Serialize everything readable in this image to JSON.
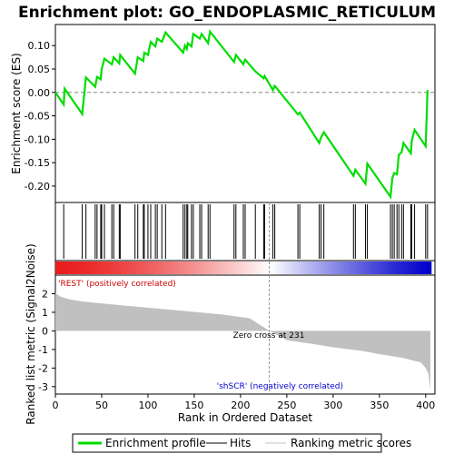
{
  "chart_data": {
    "type": "line",
    "title": "Enrichment plot: GO_ENDOPLASMIC_RETICULUM",
    "top_panel": {
      "ylabel": "Enrichment score (ES)",
      "ylim": [
        -0.235,
        0.145
      ],
      "y_ticks": [
        0.1,
        0.05,
        0.0,
        -0.05,
        -0.1,
        -0.15,
        -0.2
      ],
      "y_tick_labels": [
        "0.10",
        "0.05",
        "0.00",
        "-0.05",
        "-0.10",
        "-0.15",
        "-0.20"
      ],
      "series": [
        {
          "name": "Enrichment profile",
          "color": "#00dd00",
          "points": [
            [
              0,
              0.0
            ],
            [
              9,
              -0.026
            ],
            [
              10,
              0.008
            ],
            [
              29,
              -0.046
            ],
            [
              33,
              0.032
            ],
            [
              43,
              0.012
            ],
            [
              45,
              0.033
            ],
            [
              49,
              0.028
            ],
            [
              50,
              0.05
            ],
            [
              53,
              0.072
            ],
            [
              61,
              0.06
            ],
            [
              63,
              0.075
            ],
            [
              69,
              0.062
            ],
            [
              70,
              0.08
            ],
            [
              86,
              0.04
            ],
            [
              89,
              0.075
            ],
            [
              95,
              0.067
            ],
            [
              96,
              0.085
            ],
            [
              100,
              0.08
            ],
            [
              103,
              0.108
            ],
            [
              108,
              0.098
            ],
            [
              110,
              0.115
            ],
            [
              115,
              0.108
            ],
            [
              119,
              0.128
            ],
            [
              138,
              0.085
            ],
            [
              140,
              0.1
            ],
            [
              142,
              0.093
            ],
            [
              143,
              0.105
            ],
            [
              147,
              0.098
            ],
            [
              149,
              0.125
            ],
            [
              156,
              0.115
            ],
            [
              158,
              0.125
            ],
            [
              165,
              0.105
            ],
            [
              167,
              0.13
            ],
            [
              193,
              0.065
            ],
            [
              195,
              0.08
            ],
            [
              203,
              0.06
            ],
            [
              205,
              0.07
            ],
            [
              216,
              0.045
            ],
            [
              225,
              0.03
            ],
            [
              226,
              0.035
            ],
            [
              235,
              0.005
            ],
            [
              237,
              0.014
            ],
            [
              262,
              -0.047
            ],
            [
              264,
              -0.043
            ],
            [
              285,
              -0.108
            ],
            [
              287,
              -0.096
            ],
            [
              290,
              -0.085
            ],
            [
              322,
              -0.178
            ],
            [
              324,
              -0.165
            ],
            [
              335,
              -0.195
            ],
            [
              337,
              -0.152
            ],
            [
              362,
              -0.223
            ],
            [
              364,
              -0.183
            ],
            [
              366,
              -0.172
            ],
            [
              369,
              -0.175
            ],
            [
              371,
              -0.133
            ],
            [
              374,
              -0.128
            ],
            [
              376,
              -0.108
            ],
            [
              384,
              -0.13
            ],
            [
              385,
              -0.103
            ],
            [
              388,
              -0.08
            ],
            [
              400,
              -0.115
            ],
            [
              402,
              0.005
            ]
          ]
        }
      ]
    },
    "hits_panel": {
      "hit_ranks": [
        9,
        29,
        33,
        43,
        45,
        49,
        50,
        53,
        61,
        63,
        69,
        70,
        86,
        89,
        95,
        96,
        100,
        103,
        108,
        110,
        115,
        119,
        138,
        140,
        142,
        143,
        147,
        149,
        156,
        158,
        165,
        167,
        193,
        195,
        203,
        205,
        216,
        225,
        226,
        235,
        237,
        262,
        264,
        285,
        287,
        290,
        322,
        324,
        335,
        337,
        362,
        364,
        366,
        369,
        371,
        374,
        376,
        384,
        385,
        388,
        400,
        402
      ]
    },
    "bottom_panel": {
      "ylabel": "Ranked list metric (Signal2Noise)",
      "ylim": [
        -3.4,
        3.0
      ],
      "y_ticks": [
        2,
        1,
        0,
        -1,
        -2,
        -3
      ],
      "y_tick_labels": [
        "2",
        "1",
        "0",
        "-1",
        "-2",
        "-3"
      ],
      "metric_curve": [
        [
          0,
          2.05
        ],
        [
          5,
          1.85
        ],
        [
          15,
          1.7
        ],
        [
          30,
          1.58
        ],
        [
          60,
          1.43
        ],
        [
          100,
          1.25
        ],
        [
          140,
          1.07
        ],
        [
          180,
          0.88
        ],
        [
          210,
          0.68
        ],
        [
          231,
          0.0
        ],
        [
          250,
          -0.5
        ],
        [
          280,
          -0.72
        ],
        [
          300,
          -0.88
        ],
        [
          330,
          -1.07
        ],
        [
          350,
          -1.25
        ],
        [
          375,
          -1.45
        ],
        [
          395,
          -1.7
        ],
        [
          400,
          -2.0
        ],
        [
          403,
          -2.3
        ],
        [
          405,
          -3.2
        ]
      ],
      "zero_cross_rank": 231,
      "zero_cross_label": "Zero cross at 231",
      "pos_label": "'REST' (positively correlated)",
      "neg_label": "'shSCR' (negatively correlated)",
      "pos_color": "#cc0000",
      "neg_color": "#0000cc"
    },
    "xlabel": "Rank in Ordered Dataset",
    "xlim": [
      0,
      410
    ],
    "x_ticks": [
      0,
      50,
      100,
      150,
      200,
      250,
      300,
      350,
      400
    ],
    "x_tick_labels": [
      "0",
      "50",
      "100",
      "150",
      "200",
      "250",
      "300",
      "350",
      "400"
    ],
    "legend": {
      "placement": "bottom",
      "items": [
        {
          "label": "Enrichment profile",
          "color": "#00dd00"
        },
        {
          "label": "Hits",
          "color": "#000000"
        },
        {
          "label": "Ranking metric scores",
          "color": "#c0c0c0"
        }
      ]
    },
    "grid": false
  }
}
